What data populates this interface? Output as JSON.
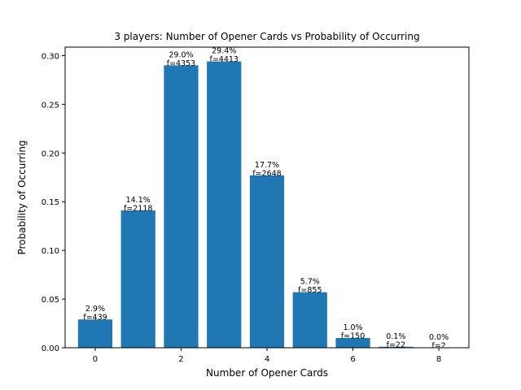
{
  "chart_data": {
    "type": "bar",
    "title": "3 players: Number of Opener Cards vs Probability of Occurring",
    "xlabel": "Number of Opener Cards",
    "ylabel": "Probability of Occurring",
    "categories": [
      0,
      1,
      2,
      3,
      4,
      5,
      6,
      7,
      8
    ],
    "values": [
      0.029,
      0.141,
      0.29,
      0.294,
      0.177,
      0.057,
      0.01,
      0.001,
      0.0
    ],
    "percent_labels": [
      "2.9%",
      "14.1%",
      "29.0%",
      "29.4%",
      "17.7%",
      "5.7%",
      "1.0%",
      "0.1%",
      "0.0%"
    ],
    "frequency_labels": [
      "f=439",
      "f=2118",
      "f=4353",
      "f=4413",
      "f=2648",
      "f=855",
      "f=150",
      "f=22",
      "f=2"
    ],
    "xticks": [
      0,
      2,
      4,
      6,
      8
    ],
    "xtick_labels": [
      "0",
      "2",
      "4",
      "6",
      "8"
    ],
    "yticks": [
      0.0,
      0.05,
      0.1,
      0.15,
      0.2,
      0.25,
      0.3
    ],
    "ytick_labels": [
      "0.00",
      "0.05",
      "0.10",
      "0.15",
      "0.20",
      "0.25",
      "0.30"
    ],
    "xlim": [
      -0.7,
      8.7
    ],
    "ylim": [
      0,
      0.3087
    ],
    "bar_color": "#1f77b4",
    "grid": false,
    "legend": false
  }
}
